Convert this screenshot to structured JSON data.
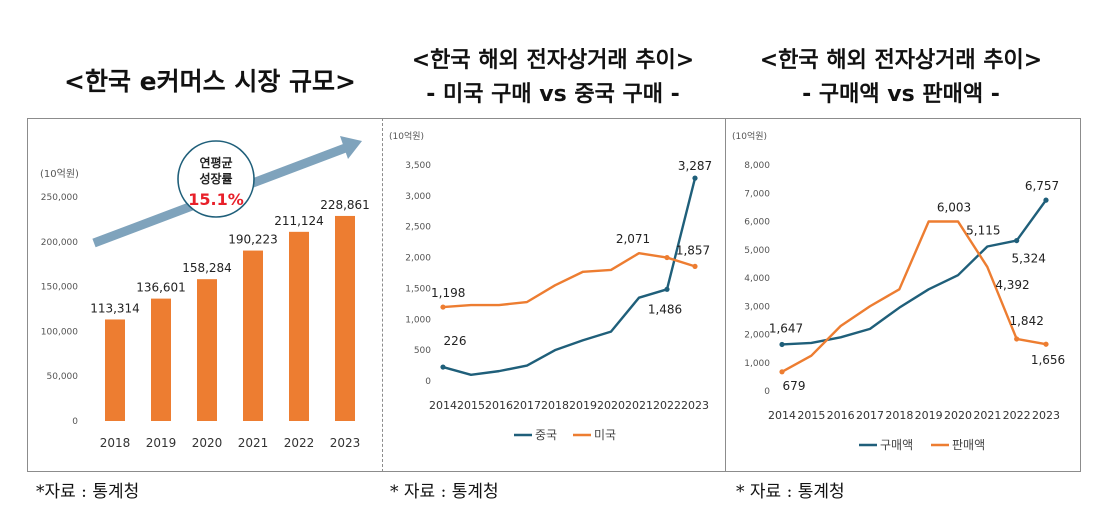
{
  "titles": {
    "market_size": "<한국 e커머스 시장 규모>",
    "overseas_1_line1": "<한국 해외 전자상거래 추이>",
    "overseas_1_line2": "- 미국 구매 vs 중국 구매 -",
    "overseas_2_line1": "<한국 해외 전자상거래 추이>",
    "overseas_2_line2": "- 구매액 vs 판매액 -"
  },
  "sources": [
    "*자료 : 통계청",
    "* 자료 : 통계청",
    "* 자료 : 통계청"
  ],
  "colors": {
    "orange": "#ED7D31",
    "teal": "#1F5F7A",
    "arrow": "#7FA3BC",
    "highlight": "#E8202A"
  },
  "chart_data": [
    {
      "type": "bar",
      "unit": "(10억원)",
      "categories": [
        "2018",
        "2019",
        "2020",
        "2021",
        "2022",
        "2023"
      ],
      "values": [
        113314,
        136601,
        158284,
        190223,
        211124,
        228861
      ],
      "value_labels": [
        "113,314",
        "136,601",
        "158,284",
        "190,223",
        "211,124",
        "228,861"
      ],
      "yticks": [
        "0",
        "50,000",
        "100,000",
        "150,000",
        "200,000",
        "250,000"
      ],
      "ylim": [
        0,
        250000
      ],
      "annotation": {
        "line1": "연평균",
        "line2": "성장률",
        "value": "15.1%"
      },
      "grid": false
    },
    {
      "type": "line",
      "unit": "(10억원)",
      "x": [
        "2014",
        "2015",
        "2016",
        "2017",
        "2018",
        "2019",
        "2020",
        "2021",
        "2022",
        "2023"
      ],
      "ylim": [
        0,
        3500
      ],
      "yticks": [
        "0",
        "500",
        "1,000",
        "1,500",
        "2,000",
        "2,500",
        "3,000",
        "3,500"
      ],
      "series": [
        {
          "name": "중국",
          "values": [
            226,
            100,
            160,
            250,
            500,
            660,
            800,
            1350,
            1486,
            3287
          ]
        },
        {
          "name": "미국",
          "values": [
            1198,
            1230,
            1230,
            1280,
            1550,
            1770,
            1800,
            2071,
            2000,
            1857
          ]
        }
      ],
      "labels": [
        {
          "series": 0,
          "index": 0,
          "text": "226"
        },
        {
          "series": 0,
          "index": 8,
          "text": "1,486"
        },
        {
          "series": 0,
          "index": 9,
          "text": "3,287"
        },
        {
          "series": 1,
          "index": 0,
          "text": "1,198"
        },
        {
          "series": 1,
          "index": 7,
          "text": "2,071"
        },
        {
          "series": 1,
          "index": 9,
          "text": "1,857"
        }
      ],
      "legend": "bottom",
      "grid": false
    },
    {
      "type": "line",
      "unit": "(10억원)",
      "x": [
        "2014",
        "2015",
        "2016",
        "2017",
        "2018",
        "2019",
        "2020",
        "2021",
        "2022",
        "2023"
      ],
      "ylim": [
        0,
        8000
      ],
      "yticks": [
        "0",
        "1,000",
        "2,000",
        "3,000",
        "4,000",
        "5,000",
        "6,000",
        "7,000",
        "8,000"
      ],
      "series": [
        {
          "name": "구매액",
          "values": [
            1647,
            1700,
            1900,
            2200,
            2950,
            3600,
            4100,
            5115,
            5324,
            6757
          ]
        },
        {
          "name": "판매액",
          "values": [
            679,
            1250,
            2300,
            3000,
            3600,
            6000,
            6003,
            4392,
            1842,
            1656
          ]
        }
      ],
      "labels": [
        {
          "series": 0,
          "index": 0,
          "text": "1,647"
        },
        {
          "series": 0,
          "index": 7,
          "text": "5,115"
        },
        {
          "series": 0,
          "index": 8,
          "text": "5,324"
        },
        {
          "series": 0,
          "index": 9,
          "text": "6,757"
        },
        {
          "series": 1,
          "index": 0,
          "text": "679"
        },
        {
          "series": 1,
          "index": 6,
          "text": "6,003"
        },
        {
          "series": 1,
          "index": 7,
          "text": "4,392"
        },
        {
          "series": 1,
          "index": 8,
          "text": "1,842"
        },
        {
          "series": 1,
          "index": 9,
          "text": "1,656"
        }
      ],
      "legend": "bottom",
      "grid": false
    }
  ]
}
